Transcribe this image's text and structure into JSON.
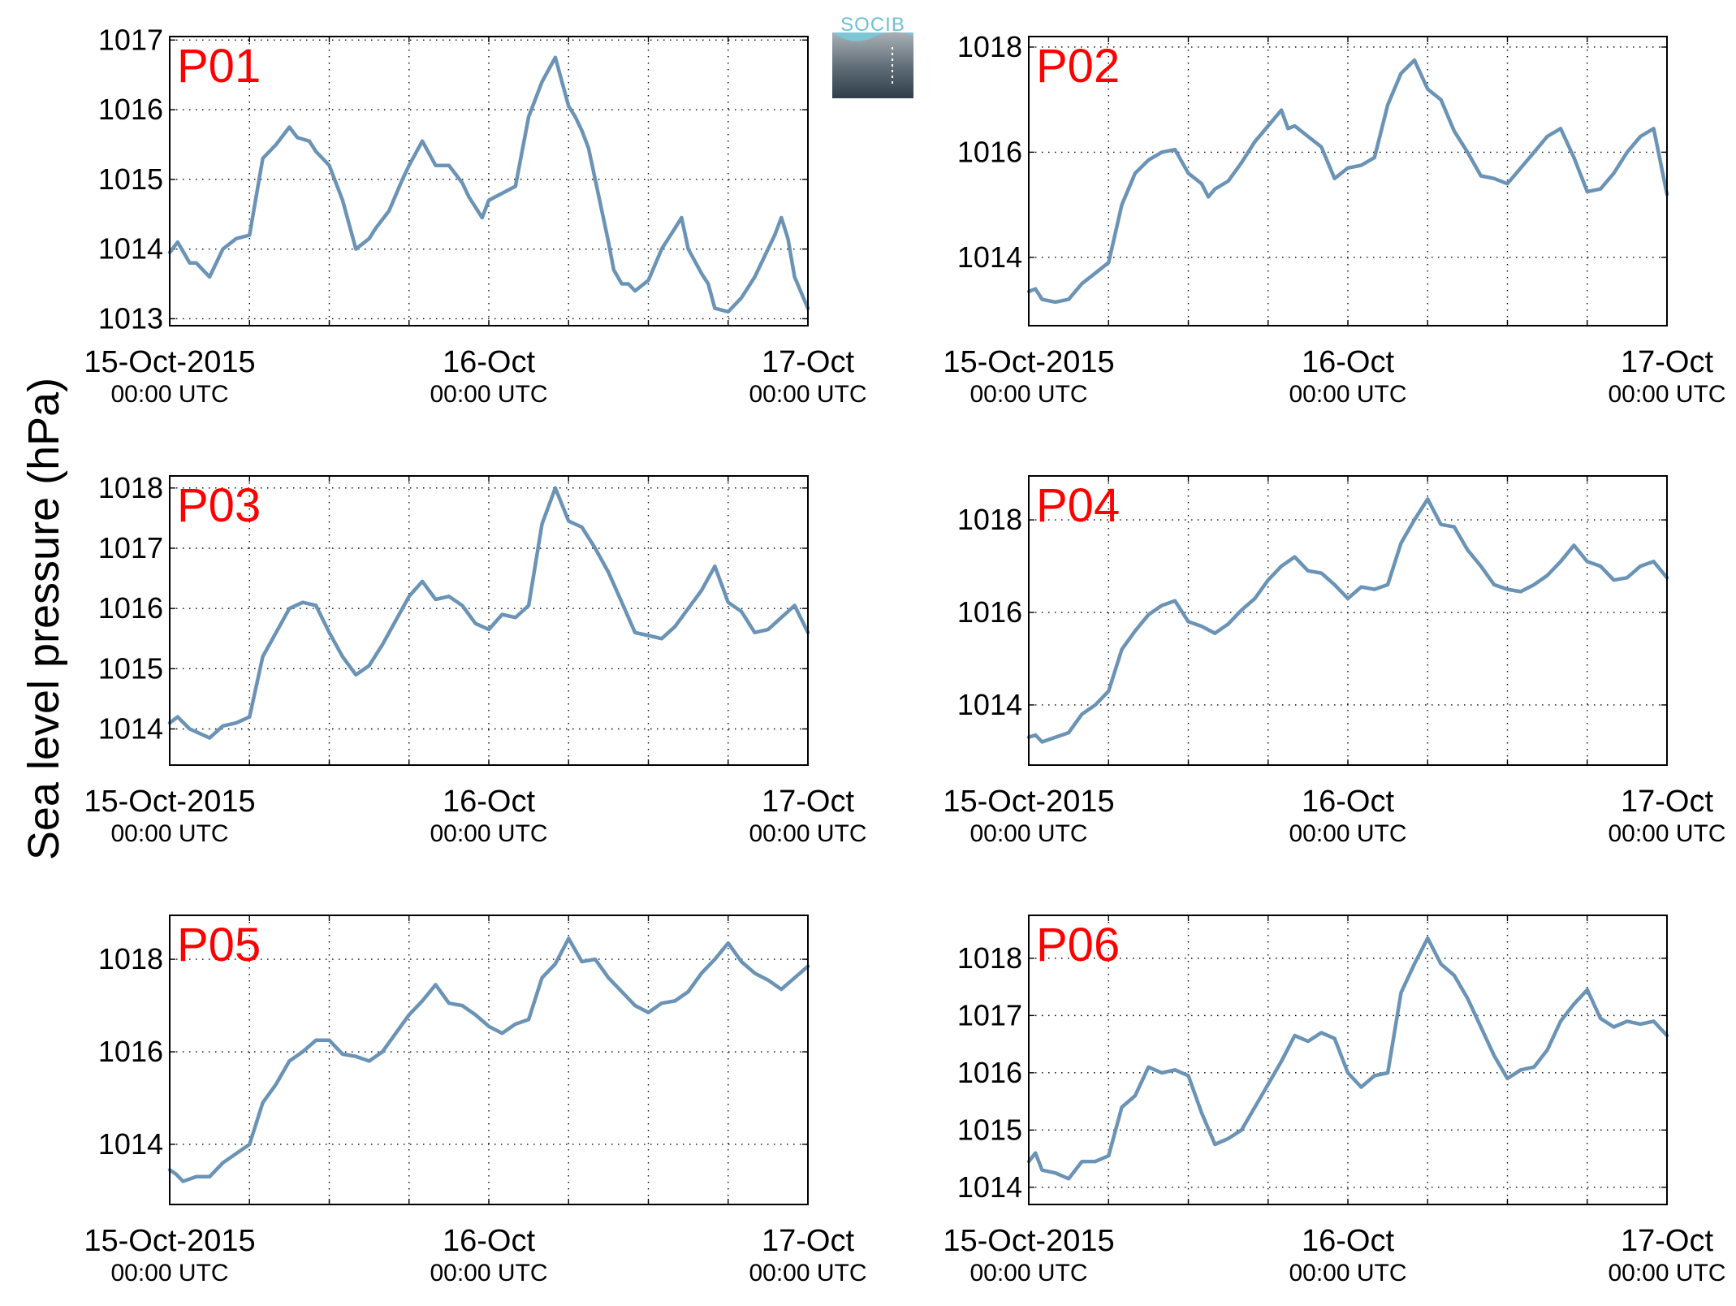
{
  "figure": {
    "ylabel": "Sea level pressure (hPa)",
    "logo_text": "SOCIB",
    "line_color": "#6a93b5",
    "station_label_color": "#ff0000",
    "axis_color": "#000000"
  },
  "chart_data": [
    {
      "type": "line",
      "station": "P01",
      "x_ticks": [
        [
          "15-Oct-2015",
          "00:00 UTC"
        ],
        [
          "16-Oct",
          "00:00 UTC"
        ],
        [
          "17-Oct",
          "00:00 UTC"
        ]
      ],
      "xlim_hours": [
        0,
        48
      ],
      "ylim": [
        1012.9,
        1017.05
      ],
      "yticks": [
        1013,
        1014,
        1015,
        1016,
        1017
      ],
      "grid": true,
      "series": [
        {
          "hour": [
            0,
            0.6,
            1.5,
            2,
            3,
            4,
            5,
            6,
            7,
            8,
            9,
            9.6,
            10.5,
            11,
            12,
            13,
            14,
            15,
            15.5,
            16.5,
            17.5,
            18,
            19,
            20,
            21,
            22,
            22.5,
            23.5,
            24,
            24.5,
            25,
            26,
            27,
            28,
            29,
            30,
            30.5,
            31,
            31.5,
            32,
            32.5,
            33,
            33.4,
            34,
            34.5,
            35,
            36,
            37,
            38,
            38.5,
            39,
            40,
            40.5,
            41,
            42,
            42.5,
            43,
            44,
            45,
            45.5,
            46,
            46.5,
            47,
            48
          ],
          "value": [
            1013.95,
            1014.1,
            1013.8,
            1013.8,
            1013.6,
            1014.0,
            1014.15,
            1014.2,
            1015.3,
            1015.5,
            1015.75,
            1015.6,
            1015.55,
            1015.4,
            1015.2,
            1014.7,
            1014.0,
            1014.15,
            1014.3,
            1014.55,
            1015.0,
            1015.2,
            1015.55,
            1015.2,
            1015.2,
            1014.95,
            1014.75,
            1014.45,
            1014.7,
            1014.75,
            1014.8,
            1014.9,
            1015.9,
            1016.4,
            1016.75,
            1016.05,
            1015.9,
            1015.7,
            1015.45,
            1015.0,
            1014.55,
            1014.1,
            1013.7,
            1013.5,
            1013.5,
            1013.4,
            1013.55,
            1014.0,
            1014.3,
            1014.45,
            1014.0,
            1013.65,
            1013.5,
            1013.15,
            1013.1,
            1013.2,
            1013.3,
            1013.6,
            1014.0,
            1014.2,
            1014.45,
            1014.15,
            1013.6,
            1013.15
          ]
        }
      ]
    },
    {
      "type": "line",
      "station": "P02",
      "x_ticks": [
        [
          "15-Oct-2015",
          "00:00 UTC"
        ],
        [
          "16-Oct",
          "00:00 UTC"
        ],
        [
          "17-Oct",
          "00:00 UTC"
        ]
      ],
      "xlim_hours": [
        0,
        48
      ],
      "ylim": [
        1012.7,
        1018.2
      ],
      "yticks": [
        1014,
        1016,
        1018
      ],
      "grid": true,
      "series": [
        {
          "hour": [
            0,
            0.5,
            1,
            2,
            3,
            4,
            5,
            6,
            7,
            8,
            9,
            10,
            11,
            12,
            13,
            13.5,
            14,
            15,
            16,
            17,
            18,
            19,
            19.5,
            20,
            21,
            22,
            23,
            24,
            25,
            26,
            27,
            28,
            29,
            30,
            31,
            32,
            33,
            34,
            35,
            36,
            37,
            38,
            39,
            40,
            41,
            42,
            43,
            44,
            45,
            46,
            47,
            48
          ],
          "value": [
            1013.35,
            1013.4,
            1013.2,
            1013.15,
            1013.2,
            1013.5,
            1013.7,
            1013.9,
            1015.0,
            1015.6,
            1015.85,
            1016.0,
            1016.05,
            1015.6,
            1015.4,
            1015.15,
            1015.3,
            1015.45,
            1015.8,
            1016.2,
            1016.5,
            1016.8,
            1016.45,
            1016.5,
            1016.3,
            1016.1,
            1015.5,
            1015.7,
            1015.75,
            1015.9,
            1016.9,
            1017.5,
            1017.75,
            1017.2,
            1017.0,
            1016.4,
            1016.0,
            1015.55,
            1015.5,
            1015.4,
            1015.7,
            1016.0,
            1016.3,
            1016.45,
            1015.9,
            1015.25,
            1015.3,
            1015.6,
            1016.0,
            1016.3,
            1016.45,
            1015.2
          ]
        }
      ]
    },
    {
      "type": "line",
      "station": "P03",
      "x_ticks": [
        [
          "15-Oct-2015",
          "00:00 UTC"
        ],
        [
          "16-Oct",
          "00:00 UTC"
        ],
        [
          "17-Oct",
          "00:00 UTC"
        ]
      ],
      "xlim_hours": [
        0,
        48
      ],
      "ylim": [
        1013.4,
        1018.2
      ],
      "yticks": [
        1014,
        1015,
        1016,
        1017,
        1018
      ],
      "grid": true,
      "series": [
        {
          "hour": [
            0,
            0.6,
            1.5,
            2,
            3,
            4,
            5,
            6,
            7,
            8,
            9,
            10,
            11,
            12,
            13,
            14,
            15,
            16,
            17,
            18,
            19,
            20,
            21,
            22,
            23,
            24,
            25,
            26,
            27,
            28,
            29,
            30,
            31,
            32,
            33,
            34,
            35,
            36,
            37,
            38,
            39,
            40,
            41,
            42,
            43,
            44,
            45,
            46,
            47,
            48
          ],
          "value": [
            1014.1,
            1014.2,
            1014.0,
            1013.95,
            1013.85,
            1014.05,
            1014.1,
            1014.2,
            1015.2,
            1015.6,
            1016.0,
            1016.1,
            1016.05,
            1015.6,
            1015.2,
            1014.9,
            1015.05,
            1015.4,
            1015.8,
            1016.2,
            1016.45,
            1016.15,
            1016.2,
            1016.05,
            1015.75,
            1015.65,
            1015.9,
            1015.85,
            1016.05,
            1017.4,
            1018.0,
            1017.45,
            1017.35,
            1017.0,
            1016.6,
            1016.1,
            1015.6,
            1015.55,
            1015.5,
            1015.7,
            1016.0,
            1016.3,
            1016.7,
            1016.1,
            1015.95,
            1015.6,
            1015.65,
            1015.85,
            1016.05,
            1015.6
          ]
        }
      ]
    },
    {
      "type": "line",
      "station": "P04",
      "x_ticks": [
        [
          "15-Oct-2015",
          "00:00 UTC"
        ],
        [
          "16-Oct",
          "00:00 UTC"
        ],
        [
          "17-Oct",
          "00:00 UTC"
        ]
      ],
      "xlim_hours": [
        0,
        48
      ],
      "ylim": [
        1012.7,
        1018.95
      ],
      "yticks": [
        1014,
        1016,
        1018
      ],
      "grid": true,
      "series": [
        {
          "hour": [
            0,
            0.5,
            1,
            2,
            3,
            4,
            5,
            6,
            7,
            8,
            9,
            10,
            11,
            12,
            13,
            14,
            15,
            16,
            17,
            18,
            19,
            20,
            21,
            22,
            23,
            24,
            25,
            26,
            27,
            28,
            29,
            30,
            31,
            32,
            33,
            34,
            35,
            36,
            37,
            38,
            39,
            40,
            41,
            42,
            43,
            44,
            45,
            46,
            47,
            48
          ],
          "value": [
            1013.3,
            1013.35,
            1013.2,
            1013.3,
            1013.4,
            1013.8,
            1014.0,
            1014.3,
            1015.2,
            1015.6,
            1015.95,
            1016.15,
            1016.25,
            1015.8,
            1015.7,
            1015.55,
            1015.75,
            1016.05,
            1016.3,
            1016.7,
            1017.0,
            1017.2,
            1016.9,
            1016.85,
            1016.6,
            1016.3,
            1016.55,
            1016.5,
            1016.6,
            1017.5,
            1018.0,
            1018.45,
            1017.9,
            1017.85,
            1017.35,
            1017.0,
            1016.6,
            1016.5,
            1016.45,
            1016.6,
            1016.8,
            1017.1,
            1017.45,
            1017.1,
            1017.0,
            1016.7,
            1016.75,
            1017.0,
            1017.1,
            1016.75
          ]
        }
      ]
    },
    {
      "type": "line",
      "station": "P05",
      "x_ticks": [
        [
          "15-Oct-2015",
          "00:00 UTC"
        ],
        [
          "16-Oct",
          "00:00 UTC"
        ],
        [
          "17-Oct",
          "00:00 UTC"
        ]
      ],
      "xlim_hours": [
        0,
        48
      ],
      "ylim": [
        1012.7,
        1018.95
      ],
      "yticks": [
        1014,
        1016,
        1018
      ],
      "grid": true,
      "series": [
        {
          "hour": [
            0,
            0.5,
            1,
            2,
            3,
            4,
            5,
            6,
            7,
            8,
            9,
            10,
            11,
            12,
            13,
            14,
            15,
            16,
            17,
            18,
            19,
            20,
            21,
            22,
            23,
            24,
            25,
            26,
            27,
            28,
            29,
            30,
            31,
            32,
            33,
            34,
            35,
            36,
            37,
            38,
            39,
            40,
            41,
            42,
            43,
            44,
            45,
            46,
            47,
            48
          ],
          "value": [
            1013.45,
            1013.35,
            1013.2,
            1013.3,
            1013.3,
            1013.6,
            1013.8,
            1014.0,
            1014.9,
            1015.3,
            1015.8,
            1016.0,
            1016.25,
            1016.25,
            1015.95,
            1015.9,
            1015.8,
            1016.0,
            1016.4,
            1016.8,
            1017.1,
            1017.45,
            1017.05,
            1017.0,
            1016.8,
            1016.55,
            1016.4,
            1016.6,
            1016.7,
            1017.6,
            1017.9,
            1018.45,
            1017.95,
            1018.0,
            1017.6,
            1017.3,
            1017.0,
            1016.85,
            1017.05,
            1017.1,
            1017.3,
            1017.7,
            1018.0,
            1018.35,
            1017.95,
            1017.7,
            1017.55,
            1017.35,
            1017.6,
            1017.85
          ]
        }
      ]
    },
    {
      "type": "line",
      "station": "P06",
      "x_ticks": [
        [
          "15-Oct-2015",
          "00:00 UTC"
        ],
        [
          "16-Oct",
          "00:00 UTC"
        ],
        [
          "17-Oct",
          "00:00 UTC"
        ]
      ],
      "xlim_hours": [
        0,
        48
      ],
      "ylim": [
        1013.7,
        1018.75
      ],
      "yticks": [
        1014,
        1015,
        1016,
        1017,
        1018
      ],
      "grid": true,
      "series": [
        {
          "hour": [
            0,
            0.5,
            1,
            2,
            3,
            4,
            5,
            6,
            7,
            8,
            9,
            10,
            11,
            12,
            13,
            14,
            15,
            16,
            17,
            18,
            19,
            20,
            21,
            22,
            23,
            24,
            25,
            26,
            27,
            28,
            29,
            30,
            31,
            32,
            33,
            34,
            35,
            36,
            37,
            38,
            39,
            40,
            41,
            42,
            43,
            44,
            45,
            46,
            47,
            48
          ],
          "value": [
            1014.45,
            1014.6,
            1014.3,
            1014.25,
            1014.15,
            1014.45,
            1014.45,
            1014.55,
            1015.4,
            1015.6,
            1016.1,
            1016.0,
            1016.05,
            1015.95,
            1015.3,
            1014.75,
            1014.85,
            1015.0,
            1015.4,
            1015.8,
            1016.2,
            1016.65,
            1016.55,
            1016.7,
            1016.6,
            1016.0,
            1015.75,
            1015.95,
            1016.0,
            1017.4,
            1017.9,
            1018.35,
            1017.9,
            1017.7,
            1017.3,
            1016.8,
            1016.3,
            1015.9,
            1016.05,
            1016.1,
            1016.4,
            1016.9,
            1017.2,
            1017.45,
            1016.95,
            1016.8,
            1016.9,
            1016.85,
            1016.9,
            1016.65
          ]
        }
      ]
    }
  ]
}
